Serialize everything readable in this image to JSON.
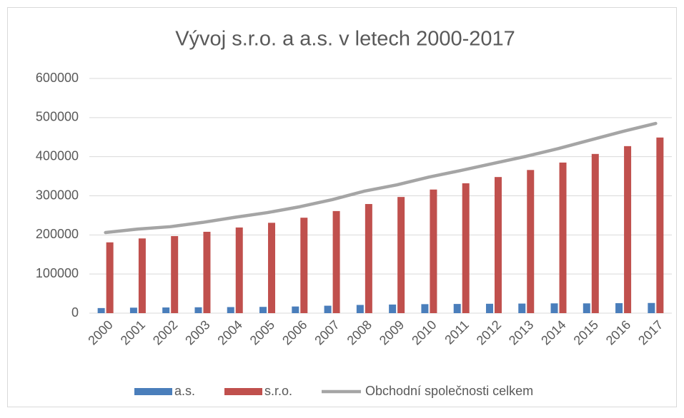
{
  "chart_data": {
    "type": "bar_line",
    "title": "Vývoj s.r.o. a a.s. v letech 2000-2017",
    "categories": [
      "2000",
      "2001",
      "2002",
      "2003",
      "2004",
      "2005",
      "2006",
      "2007",
      "2008",
      "2009",
      "2010",
      "2011",
      "2012",
      "2013",
      "2014",
      "2015",
      "2016",
      "2017"
    ],
    "series": [
      {
        "name": "a.s.",
        "type": "bar",
        "color": "#4a7ebb",
        "values": [
          13000,
          14000,
          14500,
          15000,
          15500,
          16000,
          17000,
          19000,
          21000,
          22000,
          23000,
          23500,
          24000,
          24500,
          25000,
          25000,
          25500,
          26000
        ]
      },
      {
        "name": "s.r.o.",
        "type": "bar",
        "color": "#c0504d",
        "values": [
          181000,
          191000,
          197000,
          208000,
          219000,
          231000,
          244000,
          261000,
          279000,
          297000,
          316000,
          332000,
          348000,
          366000,
          385000,
          407000,
          427000,
          449000
        ]
      },
      {
        "name": "Obchodní společnosti celkem",
        "type": "line",
        "color": "#a5a5a5",
        "values": [
          206000,
          215000,
          221000,
          232000,
          245000,
          257000,
          272000,
          290000,
          312000,
          328000,
          348000,
          365000,
          383000,
          401000,
          421000,
          443000,
          465000,
          485000
        ]
      }
    ],
    "ylim": [
      0,
      600000
    ],
    "yticks": [
      0,
      100000,
      200000,
      300000,
      400000,
      500000,
      600000
    ],
    "grid": true,
    "legend": "bottom"
  }
}
